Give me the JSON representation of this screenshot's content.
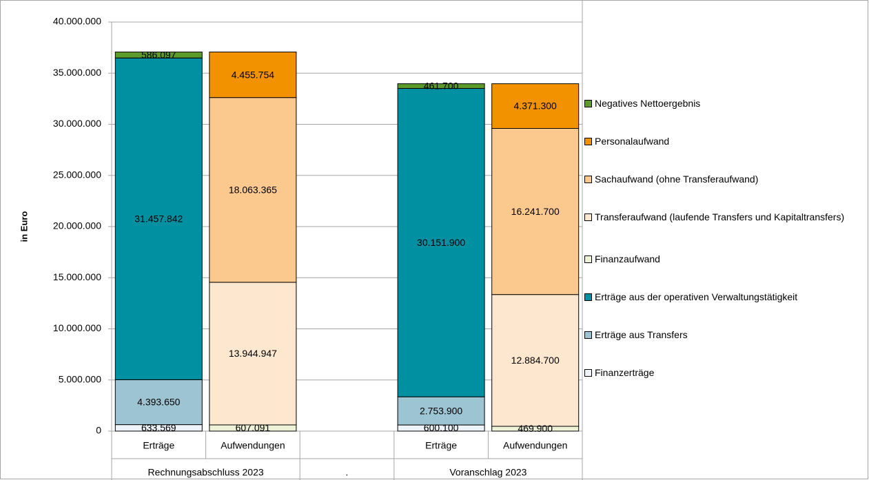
{
  "chart_data": {
    "type": "bar",
    "stacked": true,
    "y_label": "in Euro",
    "groups": [
      {
        "label": "Rechnungsabschluss 2023",
        "categories": [
          "Erträge",
          "Aufwendungen"
        ]
      },
      {
        "label": ".",
        "categories": [
          null
        ]
      },
      {
        "label": "Voranschlag 2023",
        "categories": [
          "Erträge",
          "Aufwendungen"
        ]
      }
    ],
    "ylim": [
      0,
      40000000
    ],
    "yticks": [
      0,
      {
        "value": 5000000,
        "label": "5.000.000"
      },
      {
        "value": 10000000,
        "label": "10.000.000"
      },
      {
        "value": 15000000,
        "label": "15.000.000"
      },
      {
        "value": 20000000,
        "label": "20.000.000"
      },
      {
        "value": 25000000,
        "label": "25.000.000"
      },
      {
        "value": 30000000,
        "label": "30.000.000"
      },
      {
        "value": 35000000,
        "label": "35.000.000"
      },
      {
        "value": 40000000,
        "label": "40.000.000"
      }
    ],
    "grid": true,
    "legend": "right",
    "series": [
      {
        "name": "Negatives Nettoergebnis",
        "color": "#5c9a2c",
        "values": [
          586097,
          null,
          null,
          461700,
          null
        ],
        "value_labels": [
          "586.097",
          null,
          null,
          "461.700",
          null
        ]
      },
      {
        "name": "Personalaufwand",
        "color": "#f39200",
        "values": [
          null,
          4455754,
          null,
          null,
          4371300
        ],
        "value_labels": [
          null,
          "4.455.754",
          null,
          null,
          "4.371.300"
        ]
      },
      {
        "name": "Sachaufwand (ohne Transferaufwand)",
        "color": "#fbc88e",
        "values": [
          null,
          18063365,
          null,
          null,
          16241700
        ],
        "value_labels": [
          null,
          "18.063.365",
          null,
          null,
          "16.241.700"
        ]
      },
      {
        "name": "Transferaufwand (laufende Transfers und Kapitaltransfers)",
        "color": "#fde7cf",
        "values": [
          null,
          13944947,
          null,
          null,
          12884700
        ],
        "value_labels": [
          null,
          "13.944.947",
          null,
          null,
          "12.884.700"
        ]
      },
      {
        "name": "Finanzaufwand",
        "color": "#eef3d8",
        "values": [
          null,
          607091,
          null,
          null,
          469900
        ],
        "value_labels": [
          null,
          "607.091",
          null,
          null,
          "469.900"
        ]
      },
      {
        "name": "Erträge aus der operativen Verwaltungstätigkeit",
        "color": "#0090a2",
        "values": [
          31457842,
          null,
          null,
          30151900,
          null
        ],
        "value_labels": [
          "31.457.842",
          null,
          null,
          "30.151.900",
          null
        ]
      },
      {
        "name": "Erträge aus Transfers",
        "color": "#9dc4d2",
        "values": [
          4393650,
          null,
          null,
          2753900,
          null
        ],
        "value_labels": [
          "4.393.650",
          null,
          null,
          "2.753.900",
          null
        ]
      },
      {
        "name": "Finanzerträge",
        "color": "#eef4f9",
        "values": [
          633569,
          null,
          null,
          600100,
          null
        ],
        "value_labels": [
          "633.569",
          null,
          null,
          "600.100",
          null
        ]
      }
    ]
  }
}
